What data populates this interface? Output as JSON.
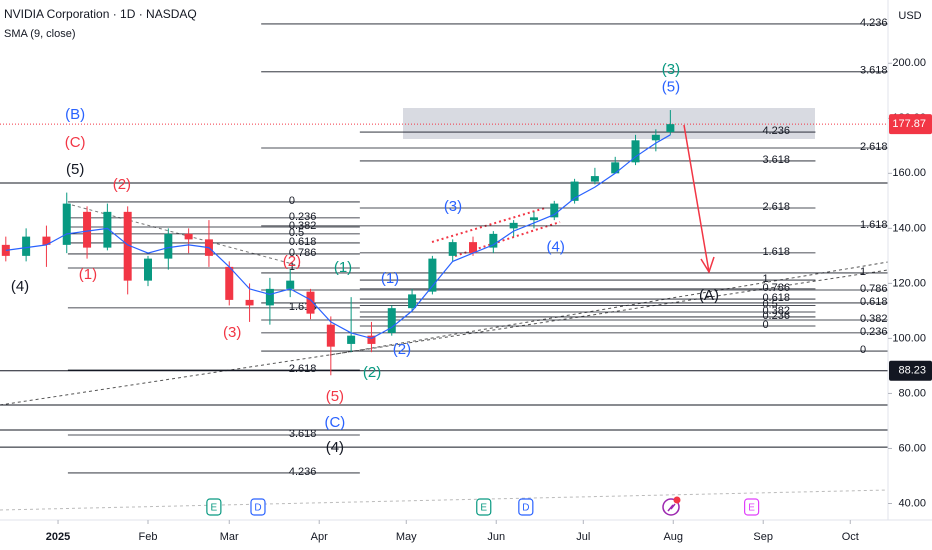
{
  "chart_data": {
    "type": "candlestick",
    "title": "NVIDIA Corporation · 1D · NASDAQ",
    "y_unit": "USD",
    "x": [
      -18,
      -11,
      -4,
      3,
      10,
      17,
      24,
      31,
      38,
      45,
      52,
      59,
      66,
      73,
      80,
      87,
      94,
      101,
      108,
      115,
      122,
      129,
      136,
      143,
      150,
      157,
      164,
      171,
      178,
      185,
      192,
      199,
      206,
      211
    ],
    "open": [
      134,
      130,
      137,
      134,
      146,
      133,
      146,
      121,
      129,
      138,
      136,
      126,
      114,
      112,
      118,
      117,
      105,
      98,
      101,
      102,
      111,
      117,
      130,
      135,
      133,
      140,
      143,
      144,
      150,
      157,
      160,
      164,
      172,
      175
    ],
    "high": [
      137,
      140,
      141,
      153,
      148,
      149,
      148,
      130,
      140,
      140,
      143,
      128,
      120,
      122,
      125,
      118,
      108,
      115,
      106,
      112,
      118,
      130,
      136,
      137,
      139,
      143,
      146,
      150,
      158,
      162,
      166,
      174,
      176,
      183
    ],
    "low": [
      128,
      128,
      126,
      131,
      129,
      132,
      116,
      119,
      125,
      131,
      126,
      112,
      106,
      105,
      115,
      107,
      86.6,
      95,
      95,
      101,
      110,
      116,
      128,
      130,
      131,
      137,
      140,
      143,
      149,
      156,
      160,
      163,
      168,
      174
    ],
    "close": [
      130,
      137,
      134,
      149,
      133,
      146,
      121,
      129,
      138,
      136,
      130,
      114,
      112,
      118,
      121,
      109,
      97,
      101,
      98,
      111,
      116,
      129,
      135,
      131,
      138,
      142,
      144,
      149,
      157,
      159,
      164,
      172,
      174,
      177.87
    ],
    "up_color": "#089981",
    "down_color": "#f23645",
    "sma": {
      "name": "SMA (9, close)",
      "color": "#2962ff",
      "values": [
        132,
        133,
        134,
        138,
        139,
        140,
        134,
        131,
        133,
        134,
        133,
        126,
        118,
        116,
        118,
        114,
        106,
        102,
        100,
        104,
        110,
        119,
        128,
        131,
        134,
        139,
        142,
        145,
        151,
        155,
        160,
        166,
        171,
        174
      ]
    },
    "xlim": [
      -20,
      286
    ],
    "ylim": [
      34,
      223
    ],
    "xticks": [
      {
        "value": 0,
        "label": "2025"
      },
      {
        "value": 31,
        "label": "Feb"
      },
      {
        "value": 59,
        "label": "Mar"
      },
      {
        "value": 90,
        "label": "Apr"
      },
      {
        "value": 120,
        "label": "May"
      },
      {
        "value": 151,
        "label": "Jun"
      },
      {
        "value": 181,
        "label": "Jul"
      },
      {
        "value": 212,
        "label": "Aug"
      },
      {
        "value": 243,
        "label": "Sep"
      },
      {
        "value": 273,
        "label": "Oct"
      }
    ],
    "yticks": [
      {
        "value": 40,
        "label": "40.00"
      },
      {
        "value": 60,
        "label": "60.00"
      },
      {
        "value": 80,
        "label": "80.00"
      },
      {
        "value": 100,
        "label": "100.00"
      },
      {
        "value": 120,
        "label": "120.00"
      },
      {
        "value": 140,
        "label": "140.00"
      },
      {
        "value": 160,
        "label": "160.00"
      },
      {
        "value": 180,
        "label": "180.00"
      },
      {
        "value": 200,
        "label": "200.00"
      }
    ],
    "price_labels": [
      {
        "value": 177.87,
        "color": "#f23645"
      },
      {
        "value": 88.23,
        "color": "#131722"
      }
    ],
    "horizontal_lines": [
      156.5,
      88.23,
      75.8,
      66.7,
      60.5
    ],
    "fib_retracements": [
      {
        "x": [
          70,
          286
        ],
        "levels": [
          {
            "ratio": 4.236,
            "price": 214.3
          },
          {
            "ratio": 3.618,
            "price": 196.9
          },
          {
            "ratio": 2.618,
            "price": 169.2
          },
          {
            "ratio": 1.618,
            "price": 140.9
          },
          {
            "ratio": 1,
            "price": 123.8
          },
          {
            "ratio": 0.786,
            "price": 117.6
          },
          {
            "ratio": 0.618,
            "price": 112.9
          },
          {
            "ratio": 0.382,
            "price": 106.7
          },
          {
            "ratio": 0.236,
            "price": 102
          },
          {
            "ratio": 0,
            "price": 95.4
          }
        ]
      },
      {
        "x": [
          104,
          261
        ],
        "levels": [
          {
            "ratio": 4.236,
            "price": 175
          },
          {
            "ratio": 3.618,
            "price": 164.5
          },
          {
            "ratio": 2.618,
            "price": 147.4
          },
          {
            "ratio": 1.618,
            "price": 131.1
          },
          {
            "ratio": 1,
            "price": 121.2
          },
          {
            "ratio": 0.786,
            "price": 118
          },
          {
            "ratio": 0.618,
            "price": 114.3
          },
          {
            "ratio": 0.5,
            "price": 112
          },
          {
            "ratio": 0.382,
            "price": 109.6
          },
          {
            "ratio": 0.236,
            "price": 107.8
          },
          {
            "ratio": 0,
            "price": 104.5
          }
        ]
      },
      {
        "x": [
          3.4,
          104
        ],
        "levels": [
          {
            "ratio": 0,
            "price": 149.6
          },
          {
            "ratio": 0.236,
            "price": 143.8
          },
          {
            "ratio": 0.382,
            "price": 140.5
          },
          {
            "ratio": 0.5,
            "price": 138
          },
          {
            "ratio": 0.618,
            "price": 134.7
          },
          {
            "ratio": 0.786,
            "price": 130.7
          },
          {
            "ratio": 1,
            "price": 125.6
          },
          {
            "ratio": 1.618,
            "price": 111.1
          },
          {
            "ratio": 2.618,
            "price": 88.5
          },
          {
            "ratio": 3.618,
            "price": 64.9
          },
          {
            "ratio": 4.236,
            "price": 51.1
          }
        ]
      }
    ],
    "wave_labels": [
      {
        "text": "(B)",
        "day": 5.9,
        "price": 181.2,
        "color": "#2962ff"
      },
      {
        "text": "(C)",
        "day": 5.9,
        "price": 171,
        "color": "#f23645"
      },
      {
        "text": "(5)",
        "day": 5.9,
        "price": 161.2,
        "color": "#131722"
      },
      {
        "text": "(4)",
        "day": -13.1,
        "price": 118.7,
        "color": "#131722"
      },
      {
        "text": "(2)",
        "day": 22,
        "price": 155.8,
        "color": "#f23645"
      },
      {
        "text": "(1)",
        "day": 10.3,
        "price": 123.1,
        "color": "#f23645"
      },
      {
        "text": "(2)",
        "day": 80.6,
        "price": 127.8,
        "color": "#f23645"
      },
      {
        "text": "(3)",
        "day": 60,
        "price": 102,
        "color": "#f23645"
      },
      {
        "text": "(1)",
        "day": 98.2,
        "price": 125.6,
        "color": "#089981"
      },
      {
        "text": "(1)",
        "day": 114.4,
        "price": 121.6,
        "color": "#2962ff"
      },
      {
        "text": "(2)",
        "day": 118.5,
        "price": 95.8,
        "color": "#2962ff"
      },
      {
        "text": "(2)",
        "day": 108.2,
        "price": 87.4,
        "color": "#089981"
      },
      {
        "text": "(5)",
        "day": 95.4,
        "price": 78.7,
        "color": "#f23645"
      },
      {
        "text": "(C)",
        "day": 95.4,
        "price": 69.3,
        "color": "#2962ff"
      },
      {
        "text": "(4)",
        "day": 95.4,
        "price": 60.2,
        "color": "#131722"
      },
      {
        "text": "(3)",
        "day": 136.1,
        "price": 147.8,
        "color": "#2962ff"
      },
      {
        "text": "(4)",
        "day": 171.5,
        "price": 133,
        "color": "#2962ff"
      },
      {
        "text": "(3)",
        "day": 211.2,
        "price": 197.6,
        "color": "#089981"
      },
      {
        "text": "(5)",
        "day": 211.2,
        "price": 191.1,
        "color": "#2962ff"
      },
      {
        "text": "(A)",
        "day": 224.3,
        "price": 115.4,
        "color": "#131722"
      }
    ],
    "events": [
      {
        "label": "E",
        "day": 53.7,
        "color": "#089981"
      },
      {
        "label": "D",
        "day": 68.9,
        "color": "#2962ff"
      },
      {
        "label": "E",
        "day": 146.7,
        "color": "#089981"
      },
      {
        "label": "D",
        "day": 161.2,
        "color": "#2962ff"
      },
      {
        "label": "E",
        "day": 239,
        "color": "#e040fb"
      }
    ]
  }
}
